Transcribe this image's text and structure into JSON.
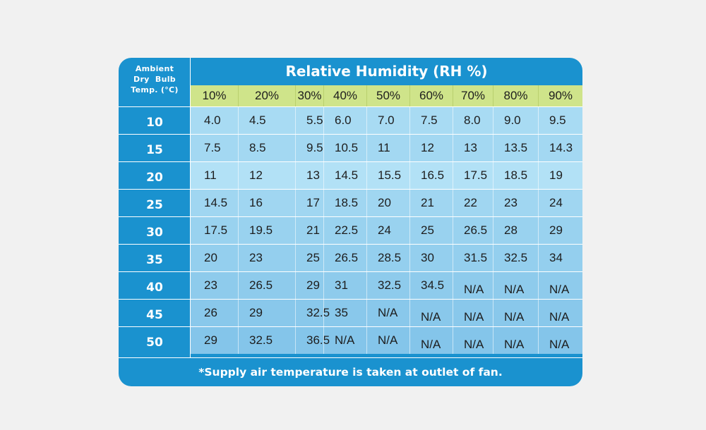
{
  "chart_data": {
    "type": "table",
    "title": "Relative Humidity (RH %)",
    "row_header_label": "Ambient Dry Bulb Temp. (°C)",
    "row_header_lines": [
      "Ambient",
      "Dry  Bulb",
      "Temp. (°C)"
    ],
    "columns": [
      "10%",
      "20%",
      "30%",
      "40%",
      "50%",
      "60%",
      "70%",
      "80%",
      "90%"
    ],
    "rows": [
      {
        "label": "10",
        "values": [
          "4.0",
          "4.5",
          "5.5",
          "6.0",
          "7.0",
          "7.5",
          "8.0",
          "9.0",
          "9.5"
        ]
      },
      {
        "label": "15",
        "values": [
          "7.5",
          "8.5",
          "9.5",
          "10.5",
          "11",
          "12",
          "13",
          "13.5",
          "14.3"
        ]
      },
      {
        "label": "20",
        "values": [
          "11",
          "12",
          "13",
          "14.5",
          "15.5",
          "16.5",
          "17.5",
          "18.5",
          "19"
        ]
      },
      {
        "label": "25",
        "values": [
          "14.5",
          "16",
          "17",
          "18.5",
          "20",
          "21",
          "22",
          "23",
          "24"
        ]
      },
      {
        "label": "30",
        "values": [
          "17.5",
          "19.5",
          "21",
          "22.5",
          "24",
          "25",
          "26.5",
          "28",
          "29"
        ]
      },
      {
        "label": "35",
        "values": [
          "20",
          "23",
          "25",
          "26.5",
          "28.5",
          "30",
          "31.5",
          "32.5",
          "34"
        ]
      },
      {
        "label": "40",
        "values": [
          "23",
          "26.5",
          "29",
          "31",
          "32.5",
          "34.5",
          "N/A",
          "N/A",
          "N/A"
        ]
      },
      {
        "label": "45",
        "values": [
          "26",
          "29",
          "32.5",
          "35",
          "N/A",
          "N/A",
          "N/A",
          "N/A",
          "N/A"
        ]
      },
      {
        "label": "50",
        "values": [
          "29",
          "32.5",
          "36.5",
          "N/A",
          "N/A",
          "N/A",
          "N/A",
          "N/A",
          "N/A"
        ]
      }
    ],
    "footnote": "*Supply air temperature is taken at outlet of fan."
  },
  "colors": {
    "background": "#f1f1f1",
    "card_blue": "#1a92cf",
    "header_green": "#cfe48a",
    "row_shades": [
      "#a8dbf3",
      "#a3d8f2",
      "#b2e1f6",
      "#a0d6f1",
      "#99d2ef",
      "#94cfee",
      "#8ecbec",
      "#89c8eb",
      "#84c5ea"
    ],
    "text_dark": "#1d1d1d",
    "text_light": "#ffffff"
  }
}
